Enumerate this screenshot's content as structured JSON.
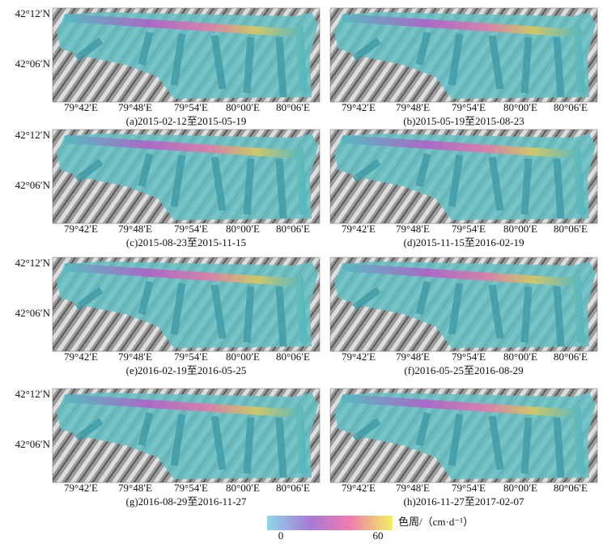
{
  "y_axis_labels": [
    "42°12′N",
    "42°06′N"
  ],
  "x_axis_labels": [
    "79°42′E",
    "79°48′E",
    "79°54′E",
    "80°00′E",
    "80°06′E"
  ],
  "panels": [
    {
      "caption": "(a)2015-02-12至2015-05-19"
    },
    {
      "caption": "(b)2015-05-19至2015-08-23"
    },
    {
      "caption": "(c)2015-08-23至2015-11-15"
    },
    {
      "caption": "(d)2015-11-15至2016-02-19"
    },
    {
      "caption": "(e)2016-02-19至2016-05-25"
    },
    {
      "caption": "(f)2016-05-25至2016-08-29"
    },
    {
      "caption": "(g)2016-08-29至2016-11-27"
    },
    {
      "caption": "(h)2016-11-27至2017-02-07"
    }
  ],
  "colorbar": {
    "label": "色周/（cm·d⁻¹）",
    "ticks": [
      0,
      60
    ]
  }
}
